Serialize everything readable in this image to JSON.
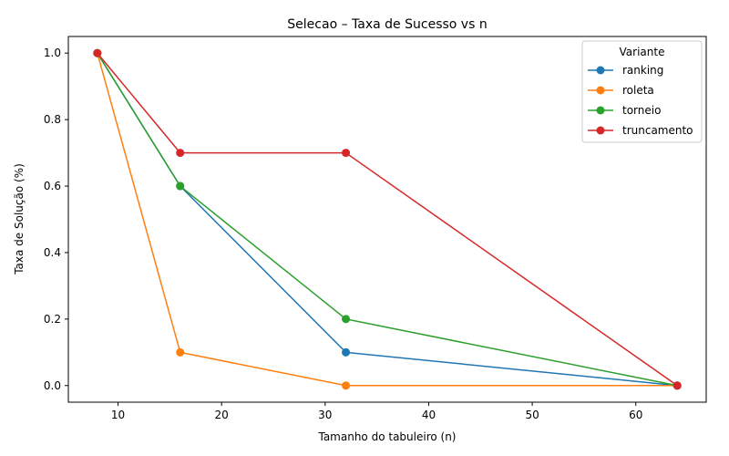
{
  "chart_data": {
    "type": "line",
    "title": "Selecao – Taxa de Sucesso vs n",
    "xlabel": "Tamanho do tabuleiro (n)",
    "ylabel": "Taxa de Solução (%)",
    "xlim": [
      5.2,
      66.8
    ],
    "ylim": [
      -0.05,
      1.05
    ],
    "x_ticks": [
      10,
      20,
      30,
      40,
      50,
      60
    ],
    "x_tick_labels": [
      "10",
      "20",
      "30",
      "40",
      "50",
      "60"
    ],
    "y_ticks": [
      0.0,
      0.2,
      0.4,
      0.6,
      0.8,
      1.0
    ],
    "y_tick_labels": [
      "0.0",
      "0.2",
      "0.4",
      "0.6",
      "0.8",
      "1.0"
    ],
    "grid": false,
    "legend_title": "Variante",
    "legend_position": "top-right",
    "x": [
      8,
      16,
      32,
      64
    ],
    "series": [
      {
        "name": "ranking",
        "color": "#1f77b4",
        "values": [
          1.0,
          0.6,
          0.1,
          0.0
        ]
      },
      {
        "name": "roleta",
        "color": "#ff7f0e",
        "values": [
          1.0,
          0.1,
          0.0,
          0.0
        ]
      },
      {
        "name": "torneio",
        "color": "#2ca02c",
        "values": [
          1.0,
          0.6,
          0.2,
          0.0
        ]
      },
      {
        "name": "truncamento",
        "color": "#d62728",
        "values": [
          1.0,
          0.7,
          0.7,
          0.0
        ]
      }
    ]
  }
}
